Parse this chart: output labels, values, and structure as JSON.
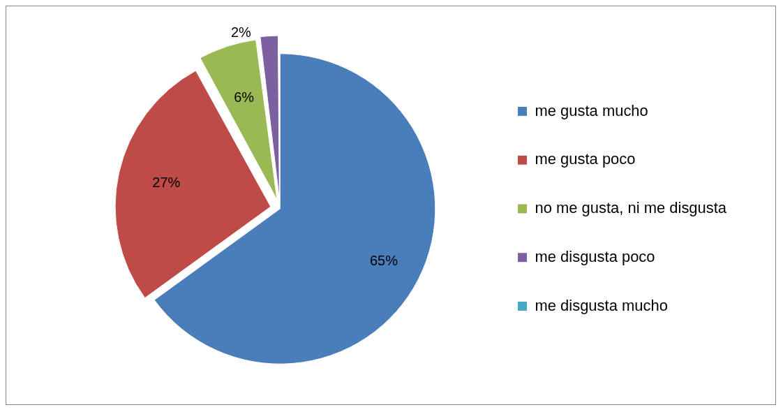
{
  "chart_data": {
    "type": "pie",
    "categories": [
      "me gusta mucho",
      "me gusta poco",
      "no me gusta, ni me disgusta",
      "me disgusta poco",
      "me disgusta mucho"
    ],
    "values": [
      65,
      27,
      6,
      2,
      0
    ],
    "value_labels": [
      "65%",
      "27%",
      "6%",
      "2%",
      null
    ],
    "colors": [
      "#4a7ebb",
      "#be4b48",
      "#98b954",
      "#7d60a0",
      "#46aac5"
    ],
    "legend": "right"
  }
}
